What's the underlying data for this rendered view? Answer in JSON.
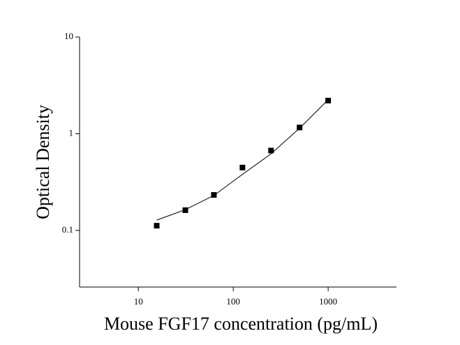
{
  "chart_data": {
    "type": "scatter",
    "x_label": "Mouse FGF17 concentration (pg/mL)",
    "y_label": "Optical Density",
    "xlog": true,
    "ylog": true,
    "xlim": [
      2.4,
      5250
    ],
    "ylim": [
      0.026,
      10
    ],
    "xticks": [
      10,
      100,
      1000
    ],
    "yticks": [
      0.1,
      1,
      10
    ],
    "series": [
      {
        "color": "#000000",
        "x": [
          15.6,
          31.25,
          62.5,
          125,
          250,
          500,
          1000
        ],
        "values": [
          0.112,
          0.162,
          0.233,
          0.447,
          0.67,
          1.16,
          2.2
        ]
      }
    ],
    "fit": {
      "color": "#000000",
      "x": [
        15.6,
        31.25,
        62.5,
        125,
        250,
        500,
        1000
      ],
      "values": [
        0.128,
        0.164,
        0.23,
        0.38,
        0.62,
        1.14,
        2.25
      ]
    }
  }
}
